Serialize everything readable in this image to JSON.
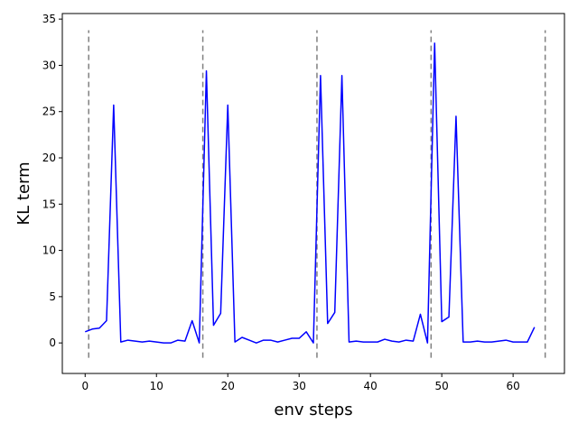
{
  "chart_data": {
    "type": "line",
    "xlabel": "env steps",
    "ylabel": "KL term",
    "xlim": [
      -3.2,
      67.2
    ],
    "ylim": [
      -3.3,
      35.6
    ],
    "xticks": [
      0,
      10,
      20,
      30,
      40,
      50,
      60
    ],
    "yticks": [
      0,
      5,
      10,
      15,
      20,
      25,
      30,
      35
    ],
    "grid": false,
    "series": [
      {
        "color": "#0000ff",
        "x": [
          0,
          1,
          2,
          3,
          4,
          5,
          6,
          7,
          8,
          9,
          10,
          11,
          12,
          13,
          14,
          15,
          16,
          17,
          18,
          19,
          20,
          21,
          22,
          23,
          24,
          25,
          26,
          27,
          28,
          29,
          30,
          31,
          32,
          33,
          34,
          35,
          36,
          37,
          38,
          39,
          40,
          41,
          42,
          43,
          44,
          45,
          46,
          47,
          48,
          49,
          50,
          51,
          52,
          53,
          54,
          55,
          56,
          57,
          58,
          59,
          60,
          61,
          62,
          63
        ],
        "values": [
          1.2,
          1.5,
          1.6,
          2.4,
          25.7,
          0.1,
          0.3,
          0.2,
          0.1,
          0.2,
          0.1,
          0.0,
          0.0,
          0.3,
          0.2,
          2.4,
          0.0,
          29.4,
          1.9,
          3.2,
          25.7,
          0.1,
          0.6,
          0.3,
          0.0,
          0.3,
          0.3,
          0.1,
          0.3,
          0.5,
          0.5,
          1.2,
          0.0,
          28.9,
          2.1,
          3.3,
          28.9,
          0.1,
          0.2,
          0.1,
          0.1,
          0.1,
          0.4,
          0.2,
          0.1,
          0.3,
          0.2,
          3.1,
          0.0,
          32.4,
          2.3,
          2.8,
          24.5,
          0.1,
          0.1,
          0.2,
          0.1,
          0.1,
          0.2,
          0.3,
          0.1,
          0.1,
          0.1,
          1.7
        ]
      }
    ],
    "vlines": {
      "x": [
        0.5,
        16.5,
        32.5,
        48.5,
        64.5
      ],
      "ymin": -1.6,
      "ymax": 33.8,
      "color": "#808080",
      "style": "dashed"
    }
  }
}
